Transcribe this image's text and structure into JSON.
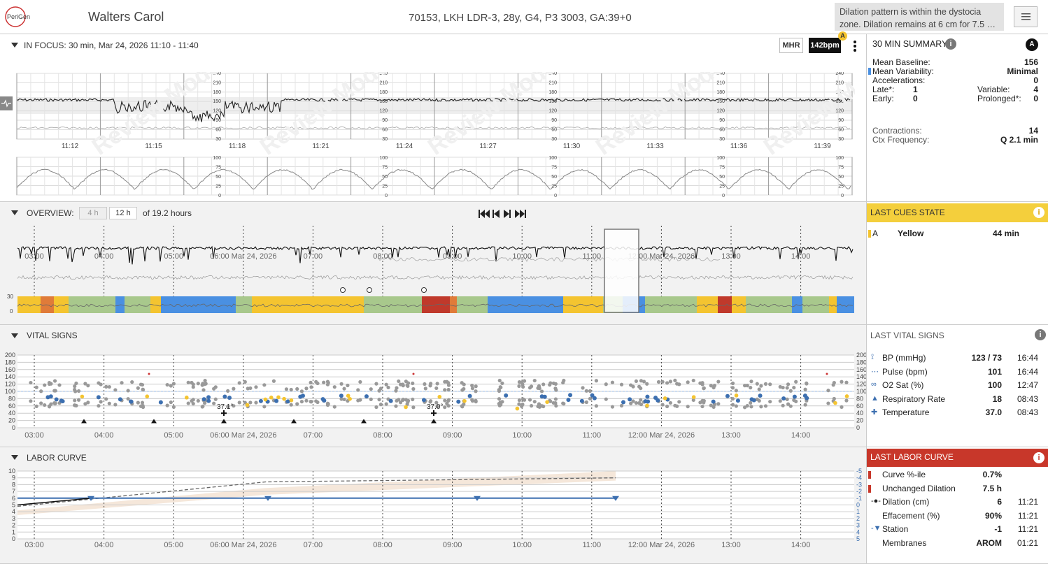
{
  "header": {
    "logo": "PeriGen",
    "patient_name": "Walters Carol",
    "patient_info": "70153, LKH LDR-3, 28y, G4, P3 3003, GA:39+0",
    "alert": "Dilation pattern is within the dystocia zone. Dilation remains at 6 cm for 7.5 …"
  },
  "focus": {
    "label": "IN FOCUS: 30 min, Mar 24, 2026 11:10 - 11:40",
    "mhr": "MHR",
    "bpm": "142bpm",
    "badge": "A",
    "fhr_ticks": [
      "240",
      "210",
      "180",
      "150",
      "120",
      "90",
      "60",
      "30"
    ],
    "uc_ticks": [
      "100",
      "75",
      "50",
      "25",
      "0"
    ],
    "time_labels": [
      "11:12",
      "11:15",
      "11:18",
      "11:21",
      "11:24",
      "11:27",
      "11:30",
      "11:33",
      "11:36",
      "11:39"
    ],
    "watermark": "Review Mode"
  },
  "summary": {
    "title": "30 MIN SUMMARY",
    "badge": "A",
    "mean_baseline_label": "Mean Baseline:",
    "mean_baseline": "156",
    "mean_var_label": "Mean Variability:",
    "mean_var": "Minimal",
    "accel_label": "Accelerations:",
    "accel": "0",
    "late_label": "Late*:",
    "late": "1",
    "variable_label": "Variable:",
    "variable": "4",
    "early_label": "Early:",
    "early": "0",
    "prolonged_label": "Prolonged*:",
    "prolonged": "0",
    "contractions_label": "Contractions:",
    "contractions": "14",
    "ctx_label": "Ctx Frequency:",
    "ctx": "Q 2.1 min"
  },
  "overview": {
    "label": "OVERVIEW:",
    "opt4": "4 h",
    "opt12": "12 h",
    "hours": "of 19.2 hours",
    "time_labels": [
      "03:00",
      "04:00",
      "05:00",
      "06:00 Mar 24, 2026",
      "07:00",
      "08:00",
      "09:00",
      "10:00",
      "11:00",
      "12:00 Mar 24, 2026",
      "13:00",
      "14:00"
    ],
    "cue_ticks": [
      "30",
      "0"
    ]
  },
  "cues": {
    "title": "LAST CUES STATE",
    "flag": "A",
    "state": "Yellow",
    "duration": "44 min"
  },
  "vitals": {
    "label": "VITAL SIGNS",
    "y_ticks": [
      "200",
      "180",
      "160",
      "140",
      "120",
      "100",
      "80",
      "60",
      "40",
      "20",
      "0"
    ],
    "temp1": "37.1°",
    "temp2": "37.0°"
  },
  "last_vitals": {
    "title": "LAST VITAL SIGNS",
    "rows": [
      {
        "label": "BP (mmHg)",
        "value": "123 / 73",
        "time": "16:44"
      },
      {
        "label": "Pulse (bpm)",
        "value": "101",
        "time": "16:44"
      },
      {
        "label": "O2 Sat (%)",
        "value": "100",
        "time": "12:47"
      },
      {
        "label": "Respiratory Rate",
        "value": "18",
        "time": "08:43"
      },
      {
        "label": "Temperature",
        "value": "37.0",
        "time": "08:43"
      }
    ]
  },
  "labor": {
    "label": "LABOR CURVE",
    "y_ticks": [
      "10",
      "9",
      "8",
      "7",
      "6",
      "5",
      "4",
      "3",
      "2",
      "1",
      "0"
    ],
    "station_ticks": [
      "-5",
      "-4",
      "-3",
      "-2",
      "-1",
      "0",
      "1",
      "2",
      "3",
      "4",
      "5"
    ],
    "time_labels": [
      "03:00",
      "04:00",
      "05:00",
      "06:00 Mar 24, 2026",
      "07:00",
      "08:00",
      "09:00",
      "10:00",
      "11:00",
      "12:00 Mar 24, 2026",
      "13:00",
      "14:00"
    ]
  },
  "last_labor": {
    "title": "LAST LABOR CURVE",
    "rows": [
      {
        "label": "Curve %-ile",
        "value": "0.7%",
        "time": ""
      },
      {
        "label": "Unchanged Dilation",
        "value": "7.5 h",
        "time": ""
      },
      {
        "label": "Dilation (cm)",
        "value": "6",
        "time": "11:21"
      },
      {
        "label": "Effacement (%)",
        "value": "90%",
        "time": "11:21"
      },
      {
        "label": "Station",
        "value": "-1",
        "time": "11:21"
      },
      {
        "label": "Membranes",
        "value": "AROM",
        "time": "01:21"
      }
    ]
  },
  "colors": {
    "yellow": "#f4c430",
    "red": "#c0392b",
    "blue": "#4a90e2",
    "green": "#a8c88c"
  }
}
